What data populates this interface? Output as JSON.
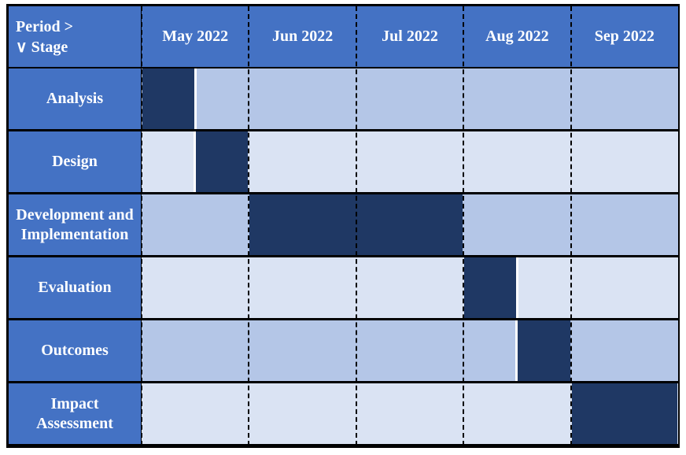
{
  "header": {
    "corner": [
      "Period >",
      "∨ Stage"
    ],
    "columns": [
      "May 2022",
      "Jun 2022",
      "Jul 2022",
      "Aug 2022",
      "Sep 2022"
    ]
  },
  "rows": [
    {
      "label": "Analysis"
    },
    {
      "label": "Design"
    },
    {
      "label": "Development and Implementation"
    },
    {
      "label": "Evaluation"
    },
    {
      "label": "Outcomes"
    },
    {
      "label": "Impact Assessment"
    }
  ]
}
